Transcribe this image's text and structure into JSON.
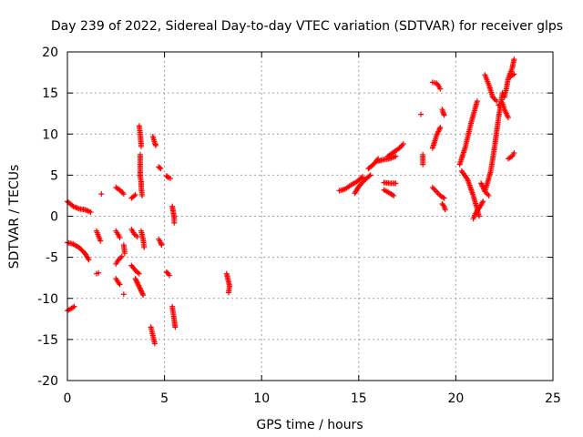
{
  "chart_data": {
    "type": "scatter",
    "title": "Day 239 of 2022, Sidereal Day-to-day VTEC variation (SDTVAR) for receiver glps",
    "xlabel": "GPS time / hours",
    "ylabel": "SDTVAR / TECUs",
    "xlim": [
      0,
      25
    ],
    "ylim": [
      -20,
      20
    ],
    "xticks": [
      0,
      5,
      10,
      15,
      20,
      25
    ],
    "yticks": [
      -20,
      -15,
      -10,
      -5,
      0,
      5,
      10,
      15,
      20
    ],
    "xtick_labels": [
      "0",
      "5",
      "10",
      "15",
      "20",
      "25"
    ],
    "ytick_labels": [
      "-20",
      "-15",
      "-10",
      "-5",
      "0",
      "5",
      "10",
      "15",
      "20"
    ],
    "grid": true,
    "marker": "+",
    "color": "#ff0000",
    "tracks": [
      {
        "x": [
          0.0,
          0.3,
          0.6,
          0.9,
          1.2
        ],
        "y": [
          1.8,
          1.2,
          0.9,
          0.8,
          0.5
        ]
      },
      {
        "x": [
          0.0,
          0.3,
          0.6,
          0.9,
          1.1
        ],
        "y": [
          -3.2,
          -3.4,
          -3.8,
          -4.5,
          -5.3
        ]
      },
      {
        "x": [
          0.0,
          0.15,
          0.35
        ],
        "y": [
          -11.5,
          -11.3,
          -11.0
        ]
      },
      {
        "x": [
          1.5,
          1.6
        ],
        "y": [
          -7.0,
          -6.9
        ]
      },
      {
        "x": [
          1.5,
          1.6,
          1.7
        ],
        "y": [
          -1.8,
          -2.4,
          -3.0
        ]
      },
      {
        "x": [
          1.75
        ],
        "y": [
          2.7
        ]
      },
      {
        "x": [
          2.5,
          2.7,
          2.9
        ],
        "y": [
          3.5,
          3.2,
          2.7
        ]
      },
      {
        "x": [
          2.5,
          2.6,
          2.7
        ],
        "y": [
          -1.8,
          -2.2,
          -2.6
        ]
      },
      {
        "x": [
          2.5,
          2.6,
          2.8
        ],
        "y": [
          -5.8,
          -5.4,
          -4.9
        ]
      },
      {
        "x": [
          2.5,
          2.6,
          2.7
        ],
        "y": [
          -7.6,
          -8.0,
          -8.3
        ]
      },
      {
        "x": [
          2.9,
          2.95
        ],
        "y": [
          -3.5,
          -4.5
        ]
      },
      {
        "x": [
          2.9
        ],
        "y": [
          -9.5
        ]
      },
      {
        "x": [
          3.3,
          3.5
        ],
        "y": [
          2.2,
          2.6
        ]
      },
      {
        "x": [
          3.3,
          3.45,
          3.6
        ],
        "y": [
          -1.6,
          -2.2,
          -2.5
        ]
      },
      {
        "x": [
          3.3,
          3.5,
          3.7
        ],
        "y": [
          -6.0,
          -6.6,
          -7.0
        ]
      },
      {
        "x": [
          3.5,
          3.7,
          3.9
        ],
        "y": [
          -7.6,
          -8.6,
          -9.6
        ]
      },
      {
        "x": [
          3.7,
          3.75,
          3.8
        ],
        "y": [
          11.0,
          10.0,
          8.5
        ]
      },
      {
        "x": [
          3.75,
          3.75,
          3.75,
          3.75,
          3.8,
          3.8,
          3.85
        ],
        "y": [
          7.5,
          6.5,
          5.5,
          4.8,
          4.2,
          3.5,
          2.5
        ]
      },
      {
        "x": [
          3.8,
          3.9,
          3.95
        ],
        "y": [
          -1.8,
          -2.8,
          -3.8
        ]
      },
      {
        "x": [
          4.3,
          4.4,
          4.5
        ],
        "y": [
          -13.5,
          -14.5,
          -15.5
        ]
      },
      {
        "x": [
          4.4,
          4.5,
          4.55
        ],
        "y": [
          9.7,
          8.9,
          8.6
        ]
      },
      {
        "x": [
          4.7,
          4.8,
          4.85
        ],
        "y": [
          -2.8,
          -3.2,
          -3.5
        ]
      },
      {
        "x": [
          4.7,
          4.8
        ],
        "y": [
          6.0,
          5.8
        ]
      },
      {
        "x": [
          5.1,
          5.2,
          5.25
        ],
        "y": [
          -6.8,
          -7.0,
          -7.2
        ]
      },
      {
        "x": [
          5.1,
          5.2,
          5.3
        ],
        "y": [
          4.9,
          4.7,
          4.6
        ]
      },
      {
        "x": [
          5.4,
          5.45,
          5.5,
          5.5
        ],
        "y": [
          1.2,
          0.5,
          -0.2,
          -0.8
        ]
      },
      {
        "x": [
          5.4,
          5.45,
          5.5,
          5.55
        ],
        "y": [
          -11.0,
          -11.8,
          -12.6,
          -13.5
        ]
      },
      {
        "x": [
          8.2,
          8.25,
          8.3,
          8.35,
          8.3
        ],
        "y": [
          -7.0,
          -7.5,
          -8.0,
          -8.5,
          -9.3
        ]
      },
      {
        "x": [
          14.0,
          14.3,
          14.6,
          14.9,
          15.2
        ],
        "y": [
          3.1,
          3.3,
          3.8,
          4.2,
          4.8
        ]
      },
      {
        "x": [
          14.8,
          15.0,
          15.3,
          15.6
        ],
        "y": [
          2.8,
          3.6,
          4.4,
          5.0
        ]
      },
      {
        "x": [
          15.5,
          15.8,
          16.0
        ],
        "y": [
          5.8,
          6.4,
          7.0
        ]
      },
      {
        "x": [
          16.3,
          16.6,
          16.9
        ],
        "y": [
          4.1,
          4.0,
          4.0
        ]
      },
      {
        "x": [
          16.0,
          16.3,
          16.6,
          16.9
        ],
        "y": [
          6.7,
          6.9,
          7.0,
          7.3
        ]
      },
      {
        "x": [
          16.5,
          16.8,
          17.1,
          17.3
        ],
        "y": [
          7.3,
          7.8,
          8.3,
          8.8
        ]
      },
      {
        "x": [
          16.3,
          16.6,
          16.8
        ],
        "y": [
          3.2,
          2.8,
          2.5
        ]
      },
      {
        "x": [
          18.2
        ],
        "y": [
          12.4
        ]
      },
      {
        "x": [
          18.3,
          18.3
        ],
        "y": [
          7.5,
          6.3
        ]
      },
      {
        "x": [
          18.8,
          19.0,
          19.1,
          19.2
        ],
        "y": [
          16.3,
          16.2,
          15.9,
          15.5
        ]
      },
      {
        "x": [
          19.3,
          19.35,
          19.4
        ],
        "y": [
          13.0,
          12.6,
          12.3
        ]
      },
      {
        "x": [
          18.8,
          18.9,
          19.0,
          19.1,
          19.2
        ],
        "y": [
          8.3,
          9.0,
          9.8,
          10.3,
          10.8
        ]
      },
      {
        "x": [
          18.8,
          19.0,
          19.2,
          19.4
        ],
        "y": [
          3.5,
          3.0,
          2.5,
          2.2
        ]
      },
      {
        "x": [
          19.3,
          19.4,
          19.45
        ],
        "y": [
          1.5,
          1.2,
          0.8
        ]
      },
      {
        "x": [
          20.2,
          20.5,
          20.8,
          21.1
        ],
        "y": [
          6.3,
          8.5,
          11.5,
          14.0
        ]
      },
      {
        "x": [
          20.3,
          20.6,
          20.9,
          21.2
        ],
        "y": [
          5.5,
          4.5,
          2.5,
          0.0
        ]
      },
      {
        "x": [
          20.9,
          21.0,
          21.2,
          21.4
        ],
        "y": [
          -0.3,
          0.3,
          1.0,
          1.8
        ]
      },
      {
        "x": [
          21.3,
          21.5,
          21.7
        ],
        "y": [
          4.0,
          3.0,
          2.5
        ]
      },
      {
        "x": [
          21.5,
          21.8,
          22.0,
          22.2,
          22.4
        ],
        "y": [
          3.0,
          5.5,
          8.5,
          12.0,
          15.0
        ]
      },
      {
        "x": [
          21.5,
          21.7,
          21.9,
          22.1
        ],
        "y": [
          17.2,
          16.0,
          14.5,
          14.0
        ]
      },
      {
        "x": [
          22.2,
          22.4,
          22.5,
          22.7
        ],
        "y": [
          13.5,
          13.8,
          13.0,
          12.0
        ]
      },
      {
        "x": [
          22.5,
          22.6,
          22.7,
          22.9,
          23.0
        ],
        "y": [
          14.5,
          15.5,
          16.8,
          18.0,
          19.1
        ]
      },
      {
        "x": [
          22.8,
          23.0
        ],
        "y": [
          17.0,
          17.3
        ]
      },
      {
        "x": [
          22.7,
          22.9,
          23.0
        ],
        "y": [
          7.0,
          7.3,
          7.7
        ]
      }
    ]
  }
}
